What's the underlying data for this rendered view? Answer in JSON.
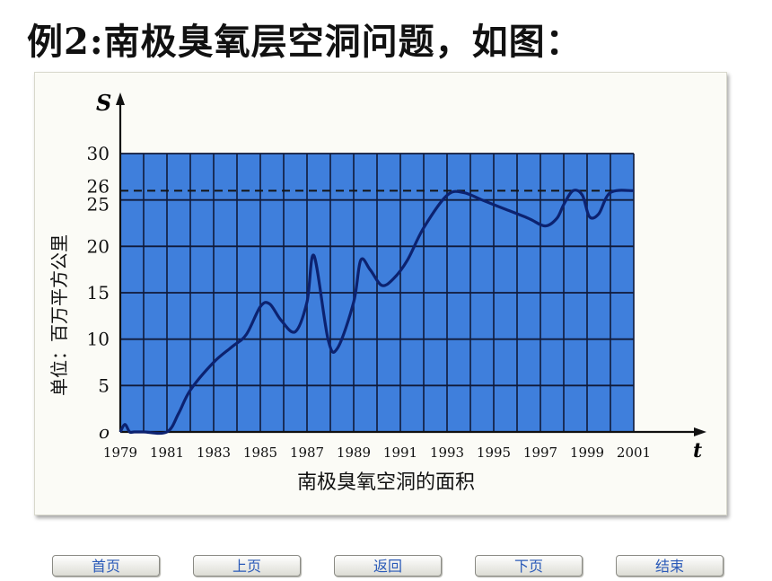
{
  "slide": {
    "title": "例2:南极臭氧层空洞问题，如图："
  },
  "chart_data": {
    "type": "line",
    "title": "",
    "xlabel": "南极臭氧空洞的面积",
    "x_axis_symbol": "t",
    "y_axis_symbol": "S",
    "ylabel": "单位：百万平方公里",
    "xlim": [
      1979,
      2001
    ],
    "ylim": [
      0,
      30
    ],
    "x_ticks": [
      "1979",
      "1981",
      "1983",
      "1985",
      "1987",
      "1989",
      "1991",
      "1993",
      "1995",
      "1997",
      "1999",
      "2001"
    ],
    "y_ticks": [
      "o",
      "5",
      "10",
      "15",
      "20",
      "25",
      "26",
      "30"
    ],
    "reference_line": {
      "y": 26,
      "style": "dashed"
    },
    "grid": true,
    "plot_background": "#3f7fdc",
    "line_color": "#0c2270",
    "series": [
      {
        "x": [
          1979,
          1979.2,
          1979.4,
          1979.6,
          1980,
          1981,
          1981.5,
          1982,
          1983,
          1983.8,
          1984.4,
          1985,
          1985.4,
          1985.9,
          1986.5,
          1987,
          1987.3,
          1987.9,
          1988.3,
          1989,
          1989.3,
          1989.7,
          1990.2,
          1990.7,
          1991.3,
          1992,
          1993,
          1993.7,
          1994.5,
          1995.5,
          1996.5,
          1997.2,
          1997.7,
          1998,
          1998.4,
          1998.8,
          1999.1,
          1999.5,
          2000,
          2001
        ],
        "y": [
          0,
          0.8,
          0,
          0,
          0,
          0,
          2,
          4.5,
          7.5,
          9.2,
          10.5,
          13.5,
          13.8,
          12,
          10.8,
          14,
          19,
          10,
          9,
          14,
          18.5,
          17.5,
          15.8,
          16.5,
          18.5,
          22,
          25.5,
          25.8,
          25,
          24,
          23,
          22.2,
          23,
          24.5,
          26,
          25.5,
          23.2,
          23.5,
          25.8,
          26
        ]
      }
    ]
  },
  "nav": {
    "home": "首页",
    "prev": "上页",
    "back": "返回",
    "next": "下页",
    "end": "结束"
  }
}
